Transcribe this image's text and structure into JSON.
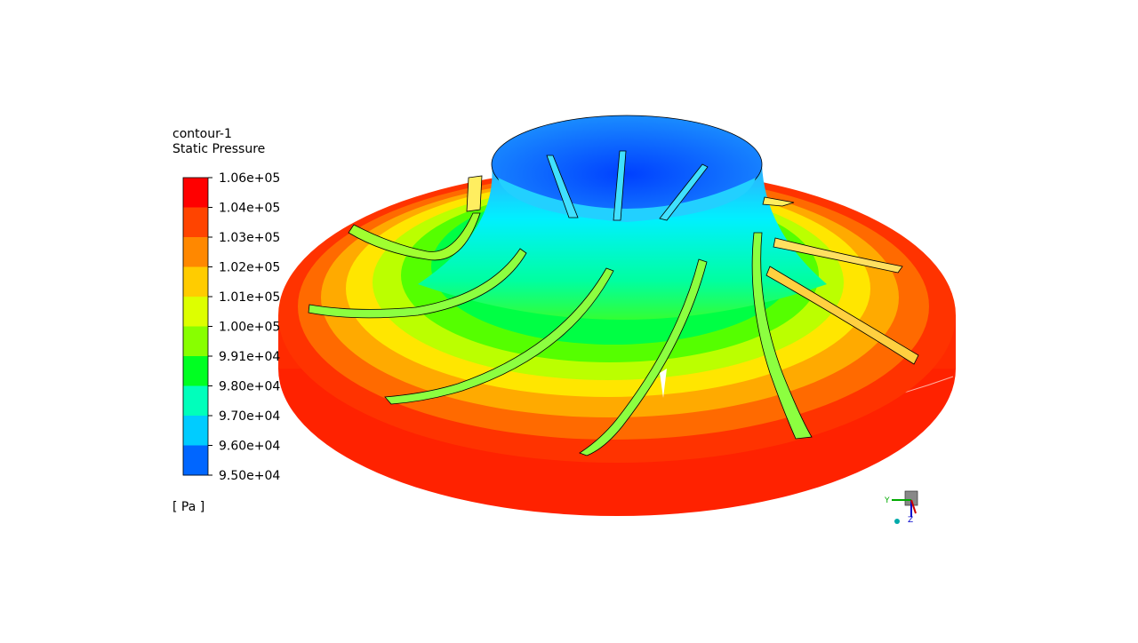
{
  "legend": {
    "title": "contour-1",
    "quantity": "Static Pressure",
    "levels": [
      "1.06e+05",
      "1.04e+05",
      "1.03e+05",
      "1.02e+05",
      "1.01e+05",
      "1.00e+05",
      "9.91e+04",
      "9.80e+04",
      "9.70e+04",
      "9.60e+04",
      "9.50e+04"
    ],
    "units": "[ Pa ]"
  },
  "triad": {
    "y_label": "Y",
    "z_label": "Z"
  }
}
